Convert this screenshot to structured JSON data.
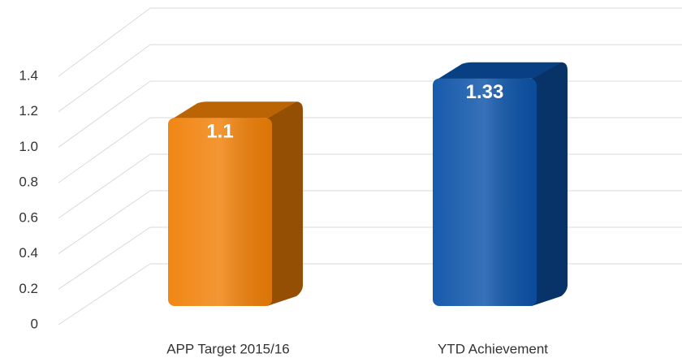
{
  "chart_data": {
    "type": "bar3d",
    "categories": [
      "APP Target 2015/16",
      "YTD Achievement"
    ],
    "values": [
      1.1,
      1.33
    ],
    "colors": [
      "#f08008",
      "#0b52a8"
    ],
    "ylim": [
      0,
      1.4
    ],
    "yticks": [
      0,
      0.2,
      0.4,
      0.6,
      0.8,
      {
        "value": 1,
        "label": "1.0"
      },
      1.2,
      1.4
    ],
    "grid": true
  }
}
